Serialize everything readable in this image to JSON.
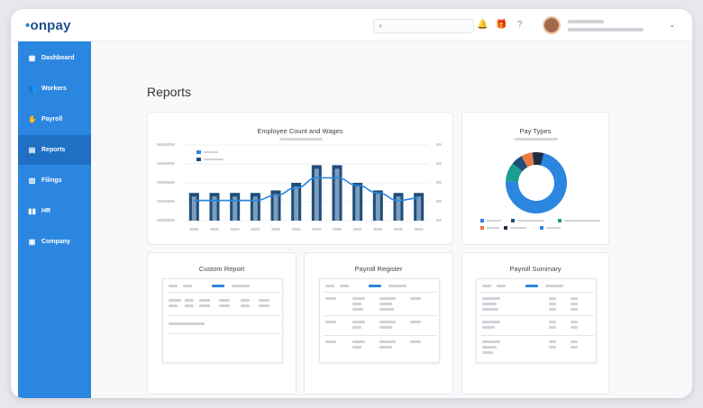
{
  "app": {
    "logo_prefix": "•",
    "logo": "onpay"
  },
  "topbar": {
    "search_icon": "search-icon",
    "icons": [
      "bell-icon",
      "gift-icon",
      "help-icon"
    ],
    "user_menu_icon": "chevron-down-icon"
  },
  "sidebar": {
    "items": [
      {
        "label": "Dashboard",
        "icon": "▦"
      },
      {
        "label": "Workers",
        "icon": "👥"
      },
      {
        "label": "Payroll",
        "icon": "✋"
      },
      {
        "label": "Reports",
        "icon": "▤"
      },
      {
        "label": "Filings",
        "icon": "▥"
      },
      {
        "label": "HR",
        "icon": "▮▮"
      },
      {
        "label": "Company",
        "icon": "▣"
      }
    ],
    "active": "Reports"
  },
  "page": {
    "title": "Reports"
  },
  "cards": {
    "employee": {
      "title": "Employee Count and Wages"
    },
    "pay_types": {
      "title": "Pay Types"
    },
    "custom": {
      "title": "Custom Report"
    },
    "register": {
      "title": "Payroll Register"
    },
    "summary": {
      "title": "Payroll Summary"
    }
  },
  "chart_data": [
    {
      "type": "bar",
      "title": "Employee Count and Wages",
      "categories": [
        "",
        "",
        "",
        "",
        "",
        "",
        "",
        "",
        "",
        "",
        "",
        ""
      ],
      "series": [
        {
          "type": "bar",
          "values": [
            22,
            22,
            22,
            22,
            24,
            30,
            44,
            44,
            30,
            24,
            22,
            22
          ]
        },
        {
          "type": "line",
          "values": [
            16,
            16,
            16,
            16,
            20,
            26,
            34,
            34,
            28,
            22,
            16,
            18
          ]
        }
      ],
      "ylim": [
        0,
        60
      ],
      "colors": {
        "bar": "#1f4e79",
        "bar_bg": "#c9dff5",
        "line": "#2b86e0"
      }
    },
    {
      "type": "pie",
      "title": "Pay Types",
      "values": [
        72,
        10,
        6,
        6,
        6
      ],
      "colors": [
        "#2b86e0",
        "#1a9e8f",
        "#1f4e79",
        "#e87a44",
        "#1b2d44"
      ]
    }
  ]
}
